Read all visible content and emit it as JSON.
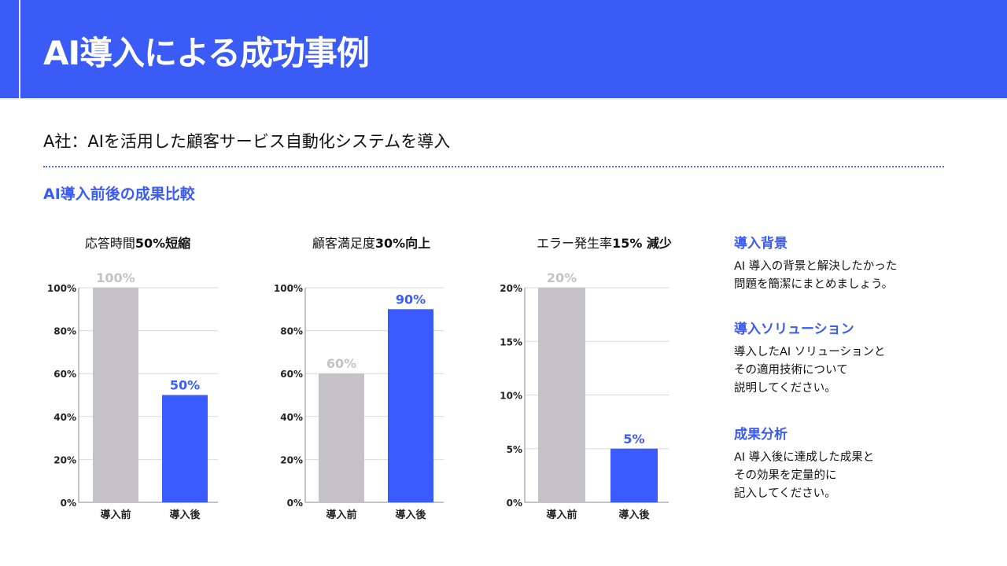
{
  "header": {
    "title": "AI導入による成功事例"
  },
  "subtitle": "A社：AIを活用した顧客サービス自動化システムを導入",
  "section_title": "AI導入前後の成果比較",
  "colors": {
    "accent": "#3b5bf6",
    "before": "#c4c2c6",
    "after": "#3a5bff"
  },
  "chart_data": [
    {
      "type": "bar",
      "title_text": "応答時間",
      "title_bold": "50%短縮",
      "categories": [
        "導入前",
        "導入後"
      ],
      "values": [
        100,
        50
      ],
      "value_labels": [
        "100%",
        "50%"
      ],
      "yticks": [
        0,
        20,
        40,
        60,
        80,
        100
      ],
      "ytick_labels": [
        "0%",
        "20%",
        "40%",
        "60%",
        "80%",
        "100%"
      ],
      "ylim": [
        0,
        100
      ]
    },
    {
      "type": "bar",
      "title_text": "顧客満足度",
      "title_bold": "30%向上",
      "categories": [
        "導入前",
        "導入後"
      ],
      "values": [
        60,
        90
      ],
      "value_labels": [
        "60%",
        "90%"
      ],
      "yticks": [
        0,
        20,
        40,
        60,
        80,
        100
      ],
      "ytick_labels": [
        "0%",
        "20%",
        "40%",
        "60%",
        "80%",
        "100%"
      ],
      "ylim": [
        0,
        100
      ]
    },
    {
      "type": "bar",
      "title_text": "エラー発生率",
      "title_bold": "15% 減少",
      "categories": [
        "導入前",
        "導入後"
      ],
      "values": [
        20,
        5
      ],
      "value_labels": [
        "20%",
        "5%"
      ],
      "yticks": [
        0,
        5,
        10,
        15,
        20
      ],
      "ytick_labels": [
        "0%",
        "5%",
        "10%",
        "15%",
        "20%"
      ],
      "ylim": [
        0,
        20
      ]
    }
  ],
  "side": [
    {
      "heading": "導入背景",
      "body": "AI 導入の背景と解決したかった\n問題を簡潔にまとめましょう。"
    },
    {
      "heading": "導入ソリューション",
      "body": "導入したAI ソリューションと\nその適用技術について\n説明してください。"
    },
    {
      "heading": "成果分析",
      "body": "AI 導入後に達成した成果と\nその効果を定量的に\n記入してください。"
    }
  ]
}
